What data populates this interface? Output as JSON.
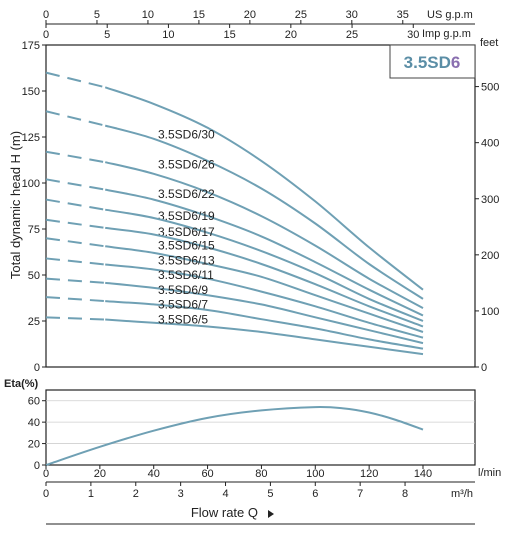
{
  "chart_data": [
    {
      "type": "line",
      "model_badge": {
        "prefix": "3.5SD",
        "suffix": "6"
      },
      "ylabel": "Total dynamic head H (m)",
      "y_unit_right": "feet",
      "x_unit_top_us": "US g.p.m",
      "x_unit_top_imp": "Imp g.p.m",
      "ylim": [
        0,
        175
      ],
      "xlim": [
        0,
        140
      ],
      "y_ticks": [
        "0",
        "25",
        "50",
        "75",
        "100",
        "125",
        "150",
        "175"
      ],
      "y_ticks_right": [
        "0",
        "100",
        "200",
        "300",
        "400",
        "500"
      ],
      "x_ticks_us": [
        "0",
        "5",
        "10",
        "15",
        "20",
        "25",
        "30",
        "35"
      ],
      "x_ticks_imp": [
        "0",
        "5",
        "10",
        "15",
        "20",
        "25",
        "30"
      ],
      "series": [
        {
          "name": "3.5SD6/30",
          "x": [
            0,
            20,
            40,
            60,
            80,
            100,
            120,
            140
          ],
          "y": [
            160,
            153,
            143,
            130,
            112,
            90,
            65,
            42
          ]
        },
        {
          "name": "3.5SD6/26",
          "x": [
            0,
            20,
            40,
            60,
            80,
            100,
            120,
            140
          ],
          "y": [
            139,
            132,
            124,
            112,
            97,
            78,
            56,
            37
          ]
        },
        {
          "name": "3.5SD6/22",
          "x": [
            0,
            20,
            40,
            60,
            80,
            100,
            120,
            140
          ],
          "y": [
            117,
            112,
            105,
            95,
            82,
            66,
            48,
            32
          ]
        },
        {
          "name": "3.5SD6/19",
          "x": [
            0,
            20,
            40,
            60,
            80,
            100,
            120,
            140
          ],
          "y": [
            102,
            97,
            91,
            82,
            71,
            57,
            42,
            28
          ]
        },
        {
          "name": "3.5SD6/17",
          "x": [
            0,
            20,
            40,
            60,
            80,
            100,
            120,
            140
          ],
          "y": [
            91,
            86,
            81,
            73,
            63,
            51,
            37,
            25
          ]
        },
        {
          "name": "3.5SD6/15",
          "x": [
            0,
            20,
            40,
            60,
            80,
            100,
            120,
            140
          ],
          "y": [
            80,
            76,
            72,
            65,
            56,
            45,
            33,
            22
          ]
        },
        {
          "name": "3.5SD6/13",
          "x": [
            0,
            20,
            40,
            60,
            80,
            100,
            120,
            140
          ],
          "y": [
            70,
            66,
            62,
            56,
            49,
            39,
            29,
            19
          ]
        },
        {
          "name": "3.5SD6/11",
          "x": [
            0,
            20,
            40,
            60,
            80,
            100,
            120,
            140
          ],
          "y": [
            59,
            56,
            53,
            48,
            41,
            33,
            24,
            16
          ]
        },
        {
          "name": "3.5SD6/9",
          "x": [
            0,
            20,
            40,
            60,
            80,
            100,
            120,
            140
          ],
          "y": [
            48,
            46,
            43,
            39,
            34,
            27,
            20,
            13
          ]
        },
        {
          "name": "3.5SD6/7",
          "x": [
            0,
            20,
            40,
            60,
            80,
            100,
            120,
            140
          ],
          "y": [
            38,
            36,
            34,
            31,
            26,
            21,
            15,
            10
          ]
        },
        {
          "name": "3.5SD6/5",
          "x": [
            0,
            20,
            40,
            60,
            80,
            100,
            120,
            140
          ],
          "y": [
            27,
            26,
            24,
            22,
            19,
            15,
            11,
            7
          ]
        }
      ]
    },
    {
      "type": "line",
      "ylabel": "Eta(%)",
      "ylim": [
        0,
        70
      ],
      "xlim": [
        0,
        140
      ],
      "y_ticks": [
        "0",
        "20",
        "40",
        "60"
      ],
      "x_ticks_lmin": [
        "0",
        "20",
        "40",
        "60",
        "80",
        "100",
        "120",
        "140"
      ],
      "x_unit_lmin": "l/min",
      "x_ticks_m3h": [
        "0",
        "1",
        "2",
        "3",
        "4",
        "5",
        "6",
        "7",
        "8"
      ],
      "x_unit_m3h": "m³/h",
      "series": [
        {
          "x": [
            0,
            20,
            40,
            60,
            80,
            100,
            110,
            120,
            130,
            140
          ],
          "y": [
            0,
            17,
            32,
            44,
            51,
            54,
            53,
            49,
            42,
            33
          ]
        }
      ],
      "xlabel": "Flow rate Q"
    }
  ]
}
